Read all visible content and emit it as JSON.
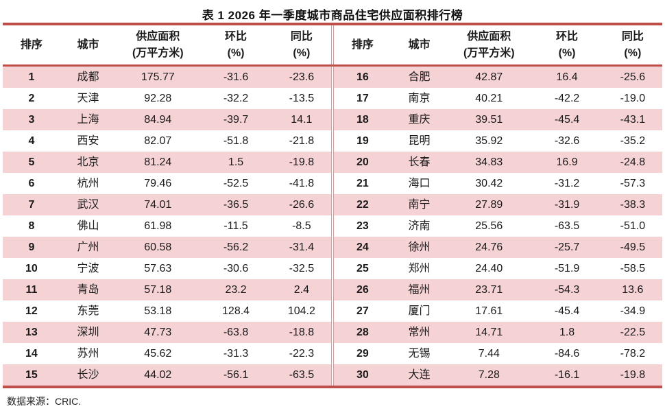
{
  "title": "表 1  2026 年一季度城市商品住宅供应面积排行榜",
  "columns": {
    "rank": "排序",
    "city": "城市",
    "supply": "供应面积",
    "supply_unit": "(万平方米)",
    "mom": "环比",
    "mom_unit": "(%)",
    "yoy": "同比",
    "yoy_unit": "(%)"
  },
  "left_rows": [
    {
      "rank": "1",
      "city": "成都",
      "supply": "175.77",
      "mom": "-31.6",
      "yoy": "-23.6"
    },
    {
      "rank": "2",
      "city": "天津",
      "supply": "92.28",
      "mom": "-32.2",
      "yoy": "-13.5"
    },
    {
      "rank": "3",
      "city": "上海",
      "supply": "84.94",
      "mom": "-39.7",
      "yoy": "14.1"
    },
    {
      "rank": "4",
      "city": "西安",
      "supply": "82.07",
      "mom": "-51.8",
      "yoy": "-21.8"
    },
    {
      "rank": "5",
      "city": "北京",
      "supply": "81.24",
      "mom": "1.5",
      "yoy": "-19.8"
    },
    {
      "rank": "6",
      "city": "杭州",
      "supply": "79.46",
      "mom": "-52.5",
      "yoy": "-41.8"
    },
    {
      "rank": "7",
      "city": "武汉",
      "supply": "74.01",
      "mom": "-36.5",
      "yoy": "-26.6"
    },
    {
      "rank": "8",
      "city": "佛山",
      "supply": "61.98",
      "mom": "-11.5",
      "yoy": "-8.5"
    },
    {
      "rank": "9",
      "city": "广州",
      "supply": "60.58",
      "mom": "-56.2",
      "yoy": "-31.4"
    },
    {
      "rank": "10",
      "city": "宁波",
      "supply": "57.63",
      "mom": "-30.6",
      "yoy": "-32.5"
    },
    {
      "rank": "11",
      "city": "青岛",
      "supply": "57.18",
      "mom": "23.2",
      "yoy": "2.4"
    },
    {
      "rank": "12",
      "city": "东莞",
      "supply": "53.18",
      "mom": "128.4",
      "yoy": "104.2"
    },
    {
      "rank": "13",
      "city": "深圳",
      "supply": "47.73",
      "mom": "-63.8",
      "yoy": "-18.8"
    },
    {
      "rank": "14",
      "city": "苏州",
      "supply": "45.62",
      "mom": "-31.3",
      "yoy": "-22.3"
    },
    {
      "rank": "15",
      "city": "长沙",
      "supply": "44.02",
      "mom": "-56.1",
      "yoy": "-63.5"
    }
  ],
  "right_rows": [
    {
      "rank": "16",
      "city": "合肥",
      "supply": "42.87",
      "mom": "16.4",
      "yoy": "-25.6"
    },
    {
      "rank": "17",
      "city": "南京",
      "supply": "40.21",
      "mom": "-42.2",
      "yoy": "-19.0"
    },
    {
      "rank": "18",
      "city": "重庆",
      "supply": "39.51",
      "mom": "-45.4",
      "yoy": "-43.1"
    },
    {
      "rank": "19",
      "city": "昆明",
      "supply": "35.92",
      "mom": "-32.6",
      "yoy": "-35.2"
    },
    {
      "rank": "20",
      "city": "长春",
      "supply": "34.83",
      "mom": "16.9",
      "yoy": "-24.8"
    },
    {
      "rank": "21",
      "city": "海口",
      "supply": "30.42",
      "mom": "-31.2",
      "yoy": "-57.3"
    },
    {
      "rank": "22",
      "city": "南宁",
      "supply": "27.89",
      "mom": "-31.9",
      "yoy": "-38.3"
    },
    {
      "rank": "23",
      "city": "济南",
      "supply": "25.56",
      "mom": "-63.5",
      "yoy": "-51.0"
    },
    {
      "rank": "24",
      "city": "徐州",
      "supply": "24.76",
      "mom": "-25.7",
      "yoy": "-49.5"
    },
    {
      "rank": "25",
      "city": "郑州",
      "supply": "24.40",
      "mom": "-51.9",
      "yoy": "-58.5"
    },
    {
      "rank": "26",
      "city": "福州",
      "supply": "23.71",
      "mom": "-54.3",
      "yoy": "13.6"
    },
    {
      "rank": "27",
      "city": "厦门",
      "supply": "17.61",
      "mom": "-45.4",
      "yoy": "-34.9"
    },
    {
      "rank": "28",
      "city": "常州",
      "supply": "14.71",
      "mom": "1.8",
      "yoy": "-22.5"
    },
    {
      "rank": "29",
      "city": "无锡",
      "supply": "7.44",
      "mom": "-84.6",
      "yoy": "-78.2"
    },
    {
      "rank": "30",
      "city": "大连",
      "supply": "7.28",
      "mom": "-16.1",
      "yoy": "-19.8"
    }
  ],
  "footer": {
    "text": "数据来源：CRIC."
  },
  "colors": {
    "accent_red": "#bf4e4b",
    "stripe_pink": "#f5d2d4",
    "divider_rose": "#d49c9c"
  }
}
